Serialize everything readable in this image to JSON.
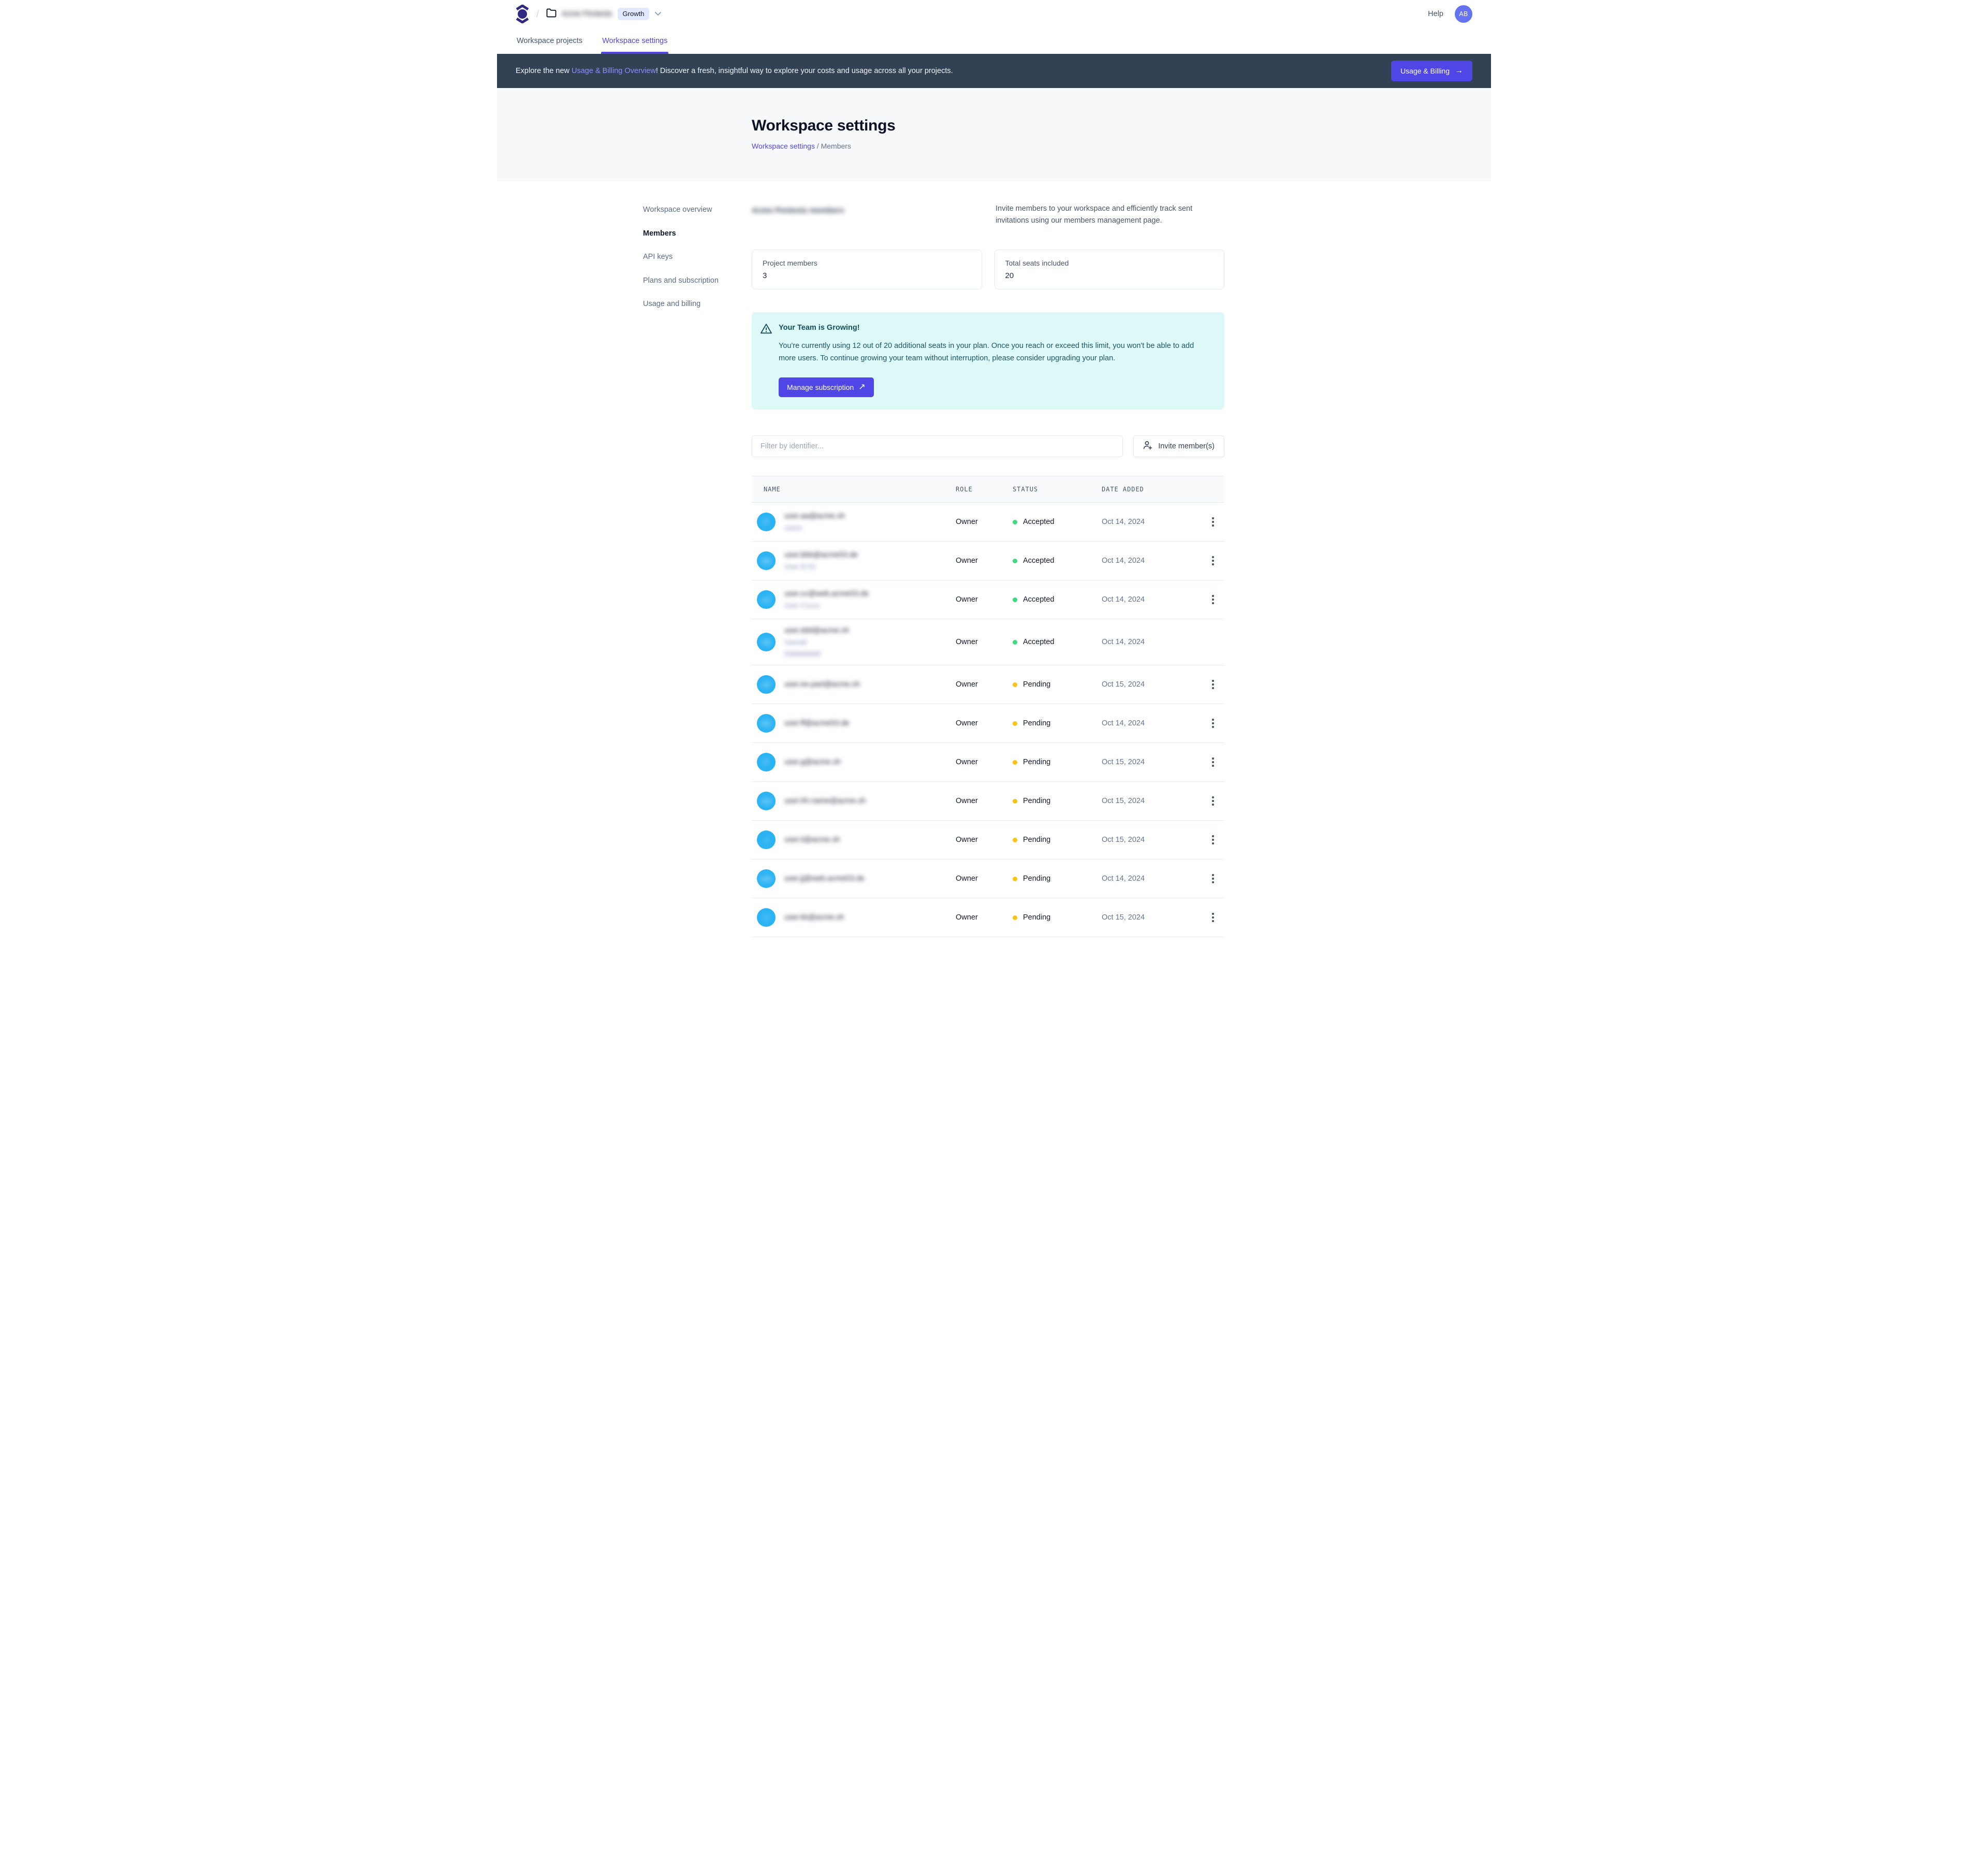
{
  "topbar": {
    "separator": "/",
    "workspace_name_redacted": "Acme Pentests",
    "plan_badge": "Growth",
    "help_label": "Help",
    "avatar_initials": "AB"
  },
  "tabs": [
    {
      "label": "Workspace projects",
      "active": false
    },
    {
      "label": "Workspace settings",
      "active": true
    }
  ],
  "banner": {
    "text_before": "Explore the new ",
    "link_text": "Usage & Billing Overview",
    "text_after": "! Discover a fresh, insightful way to explore your costs and usage across all your projects.",
    "button_label": "Usage & Billing",
    "button_arrow": "→"
  },
  "page_header": {
    "title": "Workspace settings",
    "breadcrumb_link": "Workspace settings",
    "breadcrumb_separator": "/",
    "breadcrumb_current": "Members"
  },
  "sidebar": {
    "items": [
      {
        "label": "Workspace overview",
        "active": false
      },
      {
        "label": "Members",
        "active": true
      },
      {
        "label": "API keys",
        "active": false
      },
      {
        "label": "Plans and subscription",
        "active": false
      },
      {
        "label": "Usage and billing",
        "active": false
      }
    ]
  },
  "members_section": {
    "heading_redacted": "Acme Pentests members",
    "description": "Invite members to your workspace and efficiently track sent invitations using our members management page.",
    "stats": [
      {
        "label": "Project members",
        "value": "3"
      },
      {
        "label": "Total seats included",
        "value": "20"
      }
    ],
    "notice": {
      "title": "Your Team is Growing!",
      "body": "You're currently using 12 out of 20 additional seats in your plan. Once you reach or exceed this limit, you won't be able to add more users. To continue growing your team without interruption, please consider upgrading your plan.",
      "button_label": "Manage subscription",
      "button_arrow": "↗"
    },
    "filter_placeholder": "Filter by identifier...",
    "invite_button_label": "Invite member(s)"
  },
  "table": {
    "columns": [
      "NAME",
      "ROLE",
      "STATUS",
      "DATE ADDED"
    ],
    "rows": [
      {
        "initials_redacted": "P",
        "primary_redacted": "user.aa@acme.sh",
        "secondary_redacted": [
          "usera"
        ],
        "role": "Owner",
        "status": "Accepted",
        "date": "Oct 14, 2024",
        "has_menu": true
      },
      {
        "initials_redacted": "NB",
        "primary_redacted": "user.bbb@acme53.de",
        "secondary_redacted": [
          "User B.53"
        ],
        "role": "Owner",
        "status": "Accepted",
        "date": "Oct 14, 2024",
        "has_menu": true
      },
      {
        "initials_redacted": "UC",
        "primary_redacted": "user.cc@web.acme53.de",
        "secondary_redacted": [
          "User Ccccc"
        ],
        "role": "Owner",
        "status": "Accepted",
        "date": "Oct 14, 2024",
        "has_menu": true
      },
      {
        "initials_redacted": "AB",
        "primary_redacted": "user.ddd@acme.sh",
        "secondary_redacted": [
          "Userdd",
          "Ddddddddd"
        ],
        "role": "Owner",
        "status": "Accepted",
        "date": "Oct 14, 2024",
        "has_menu": false
      },
      {
        "initials_redacted": "HP",
        "primary_redacted": "user.ee.part@acme.sh",
        "secondary_redacted": [],
        "role": "Owner",
        "status": "Pending",
        "date": "Oct 15, 2024",
        "has_menu": true
      },
      {
        "initials_redacted": "MS",
        "primary_redacted": "user.ff@acme53.de",
        "secondary_redacted": [],
        "role": "Owner",
        "status": "Pending",
        "date": "Oct 14, 2024",
        "has_menu": true
      },
      {
        "initials_redacted": "P",
        "primary_redacted": "user.g@acme.sh",
        "secondary_redacted": [],
        "role": "Owner",
        "status": "Pending",
        "date": "Oct 15, 2024",
        "has_menu": true
      },
      {
        "initials_redacted": "AM",
        "primary_redacted": "user.hh.name@acme.sh",
        "secondary_redacted": [],
        "role": "Owner",
        "status": "Pending",
        "date": "Oct 15, 2024",
        "has_menu": true
      },
      {
        "initials_redacted": "J",
        "primary_redacted": "user.ii@acme.sh",
        "secondary_redacted": [],
        "role": "Owner",
        "status": "Pending",
        "date": "Oct 15, 2024",
        "has_menu": true
      },
      {
        "initials_redacted": "HW",
        "primary_redacted": "user.jj@web.acme53.de",
        "secondary_redacted": [],
        "role": "Owner",
        "status": "Pending",
        "date": "Oct 14, 2024",
        "has_menu": true
      },
      {
        "initials_redacted": "V",
        "primary_redacted": "user.kk@acme.sh",
        "secondary_redacted": [],
        "role": "Owner",
        "status": "Pending",
        "date": "Oct 15, 2024",
        "has_menu": true
      }
    ]
  },
  "colors": {
    "accent": "#4f46e5",
    "banner-bg": "#334155",
    "banner-link": "#8e8ff7",
    "accepted": "#3fd97f",
    "pending": "#fbc21a",
    "avatar-blue": "#2bb3f3",
    "avatar-indigo": "#6673f0"
  }
}
